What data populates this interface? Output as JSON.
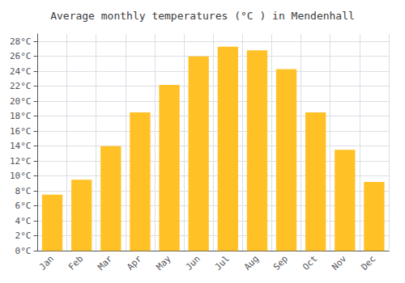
{
  "chart_data": {
    "type": "bar",
    "title": "Average monthly temperatures (°C ) in Mendenhall",
    "categories": [
      "Jan",
      "Feb",
      "Mar",
      "Apr",
      "May",
      "Jun",
      "Jul",
      "Aug",
      "Sep",
      "Oct",
      "Nov",
      "Dec"
    ],
    "values": [
      7.5,
      9.5,
      14.0,
      18.5,
      22.2,
      26.0,
      27.3,
      26.8,
      24.3,
      18.5,
      13.5,
      9.2
    ],
    "color": "#FFC125",
    "ylim": [
      0,
      29
    ],
    "yticks": [
      {
        "value": 0,
        "label": "0°C"
      },
      {
        "value": 2,
        "label": "2°C"
      },
      {
        "value": 4,
        "label": "4°C"
      },
      {
        "value": 6,
        "label": "6°C"
      },
      {
        "value": 8,
        "label": "8°C"
      },
      {
        "value": 10,
        "label": "10°C"
      },
      {
        "value": 12,
        "label": "12°C"
      },
      {
        "value": 14,
        "label": "14°C"
      },
      {
        "value": 16,
        "label": "16°C"
      },
      {
        "value": 18,
        "label": "18°C"
      },
      {
        "value": 20,
        "label": "20°C"
      },
      {
        "value": 22,
        "label": "22°C"
      },
      {
        "value": 24,
        "label": "24°C"
      },
      {
        "value": 26,
        "label": "26°C"
      },
      {
        "value": 28,
        "label": "28°C"
      }
    ],
    "grid": true
  }
}
